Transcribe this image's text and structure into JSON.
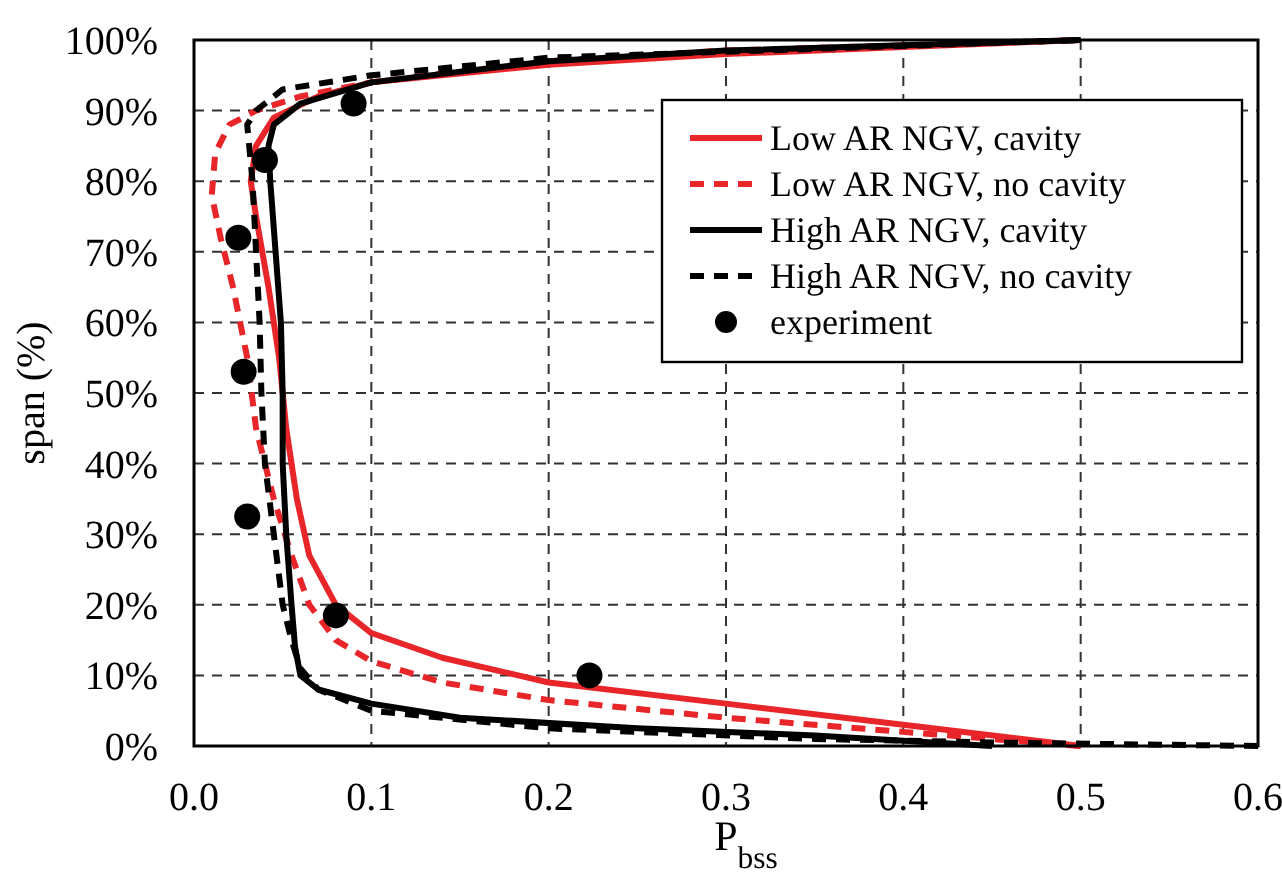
{
  "chart_data": {
    "type": "line",
    "xlabel": "P$_{bss}$",
    "ylabel": "span (%)",
    "xlim": [
      0,
      0.6
    ],
    "xticks": [
      {
        "value": 0,
        "label": "0.0"
      },
      0.1,
      0.2,
      0.3,
      0.4,
      0.5,
      0.6
    ],
    "ylim": [
      0,
      100
    ],
    "yticks": [
      {
        "value": 0,
        "label": "0%"
      },
      {
        "value": 10,
        "label": "10%"
      },
      {
        "value": 20,
        "label": "20%"
      },
      {
        "value": 30,
        "label": "30%"
      },
      {
        "value": 40,
        "label": "40%"
      },
      {
        "value": 50,
        "label": "50%"
      },
      {
        "value": 60,
        "label": "60%"
      },
      {
        "value": 70,
        "label": "70%"
      },
      {
        "value": 80,
        "label": "80%"
      },
      {
        "value": 90,
        "label": "90%"
      },
      {
        "value": 100,
        "label": "100%"
      }
    ],
    "grid": true,
    "legend": "top right",
    "marker": "none",
    "series": [
      {
        "name": "Low AR NGV, cavity",
        "color": "#e8262a",
        "line_style": "solid",
        "x": [
          0.5,
          0.4,
          0.3,
          0.2,
          0.14,
          0.1,
          0.08,
          0.065,
          0.058,
          0.052,
          0.048,
          0.042,
          0.035,
          0.032,
          0.035,
          0.045,
          0.07,
          0.1,
          0.2,
          0.3,
          0.4,
          0.5
        ],
        "values": [
          0,
          3,
          6,
          9,
          12.5,
          16,
          20,
          27,
          35,
          45,
          55,
          65,
          75,
          80,
          85,
          89,
          92,
          94,
          96.5,
          98,
          99,
          100
        ]
      },
      {
        "name": "Low AR NGV, no cavity",
        "color": "#e8262a",
        "line_style": "dashed",
        "x": [
          0.5,
          0.4,
          0.3,
          0.2,
          0.14,
          0.1,
          0.08,
          0.065,
          0.055,
          0.045,
          0.035,
          0.03,
          0.022,
          0.015,
          0.01,
          0.012,
          0.02,
          0.035,
          0.06,
          0.1,
          0.2,
          0.3,
          0.5
        ],
        "values": [
          0,
          2,
          4,
          6.5,
          9,
          12,
          15,
          20,
          27,
          35,
          45,
          55,
          65,
          72,
          78,
          84,
          88,
          90,
          92,
          94,
          97,
          98.5,
          100
        ]
      },
      {
        "name": "High AR NGV, cavity",
        "color": "#000000",
        "line_style": "solid",
        "x": [
          0.45,
          0.35,
          0.25,
          0.15,
          0.1,
          0.07,
          0.06,
          0.057,
          0.055,
          0.052,
          0.05,
          0.05,
          0.049,
          0.046,
          0.043,
          0.042,
          0.045,
          0.06,
          0.1,
          0.2,
          0.3,
          0.5
        ],
        "values": [
          0,
          1.5,
          2.5,
          4,
          6,
          8,
          10,
          14,
          20,
          30,
          40,
          50,
          60,
          70,
          80,
          85,
          88,
          91,
          94,
          97,
          98.5,
          100
        ]
      },
      {
        "name": "High AR NGV, no cavity",
        "color": "#000000",
        "line_style": "dashed",
        "x": [
          0.6,
          0.45,
          0.35,
          0.2,
          0.1,
          0.07,
          0.06,
          0.055,
          0.05,
          0.045,
          0.04,
          0.038,
          0.037,
          0.035,
          0.033,
          0.03,
          0.035,
          0.05,
          0.1,
          0.2,
          0.5
        ],
        "values": [
          0,
          0.5,
          1,
          2.5,
          5,
          8,
          11,
          15,
          20,
          30,
          40,
          50,
          60,
          70,
          80,
          88,
          90,
          93,
          95,
          97.5,
          100
        ]
      },
      {
        "name": "experiment",
        "type": "scatter",
        "marker": "circle",
        "color": "#000000",
        "x": [
          0.223,
          0.08,
          0.03,
          0.028,
          0.025,
          0.04,
          0.09
        ],
        "values": [
          10,
          18.5,
          32.5,
          53,
          72,
          83,
          91
        ]
      }
    ]
  }
}
